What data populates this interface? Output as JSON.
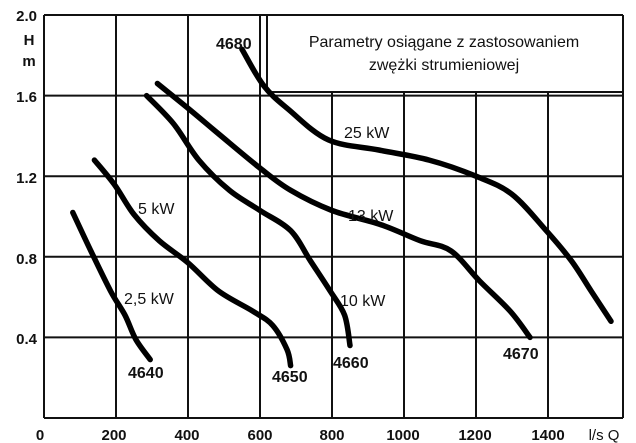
{
  "chart_data": {
    "type": "line",
    "title": "Parametry osiągane z zastosowaniem zwężki strumieniowej",
    "title_lines": [
      "Parametry osiągane z zastosowaniem",
      "zwężki strumieniowej"
    ],
    "xlabel": "l/s Q",
    "ylabel": "H m",
    "ylabel_lines": [
      "H",
      "m"
    ],
    "xlim": [
      0,
      1610
    ],
    "ylim": [
      0,
      2.0
    ],
    "grid": true,
    "legend": "inline labels",
    "x_ticks": [
      "0",
      "200",
      "400",
      "600",
      "800",
      "1000",
      "1200",
      "1400"
    ],
    "y_ticks": [
      "0.4",
      "0.8",
      "1.2",
      "1.6",
      "2.0"
    ],
    "series": [
      {
        "name": "4640",
        "power_label": "2,5 kW",
        "x": [
          80,
          130,
          185,
          225,
          255,
          295
        ],
        "y": [
          1.02,
          0.83,
          0.63,
          0.51,
          0.39,
          0.29
        ]
      },
      {
        "name": "4650",
        "power_label": "5 kW",
        "x": [
          140,
          195,
          250,
          320,
          400,
          485,
          580,
          635,
          675,
          685
        ],
        "y": [
          1.28,
          1.16,
          1.01,
          0.88,
          0.77,
          0.63,
          0.53,
          0.46,
          0.34,
          0.26
        ]
      },
      {
        "name": "4660",
        "power_label": "10 kW",
        "x": [
          285,
          360,
          430,
          515,
          600,
          685,
          740,
          795,
          835,
          850
        ],
        "y": [
          1.6,
          1.46,
          1.28,
          1.13,
          1.03,
          0.93,
          0.78,
          0.63,
          0.51,
          0.36
        ]
      },
      {
        "name": "4670",
        "power_label": "13 kW",
        "x": [
          315,
          405,
          485,
          600,
          685,
          800,
          935,
          1045,
          1130,
          1210,
          1295,
          1350
        ],
        "y": [
          1.66,
          1.53,
          1.41,
          1.24,
          1.13,
          1.03,
          0.96,
          0.88,
          0.83,
          0.68,
          0.53,
          0.4
        ]
      },
      {
        "name": "4680",
        "power_label": "25 kW",
        "x": [
          550,
          610,
          680,
          790,
          930,
          1070,
          1200,
          1300,
          1395,
          1465,
          1520,
          1575
        ],
        "y": [
          1.83,
          1.65,
          1.53,
          1.38,
          1.33,
          1.28,
          1.2,
          1.11,
          0.93,
          0.78,
          0.63,
          0.48
        ]
      }
    ]
  },
  "colors": {
    "background": "#ffffff",
    "ink": "#000000"
  }
}
